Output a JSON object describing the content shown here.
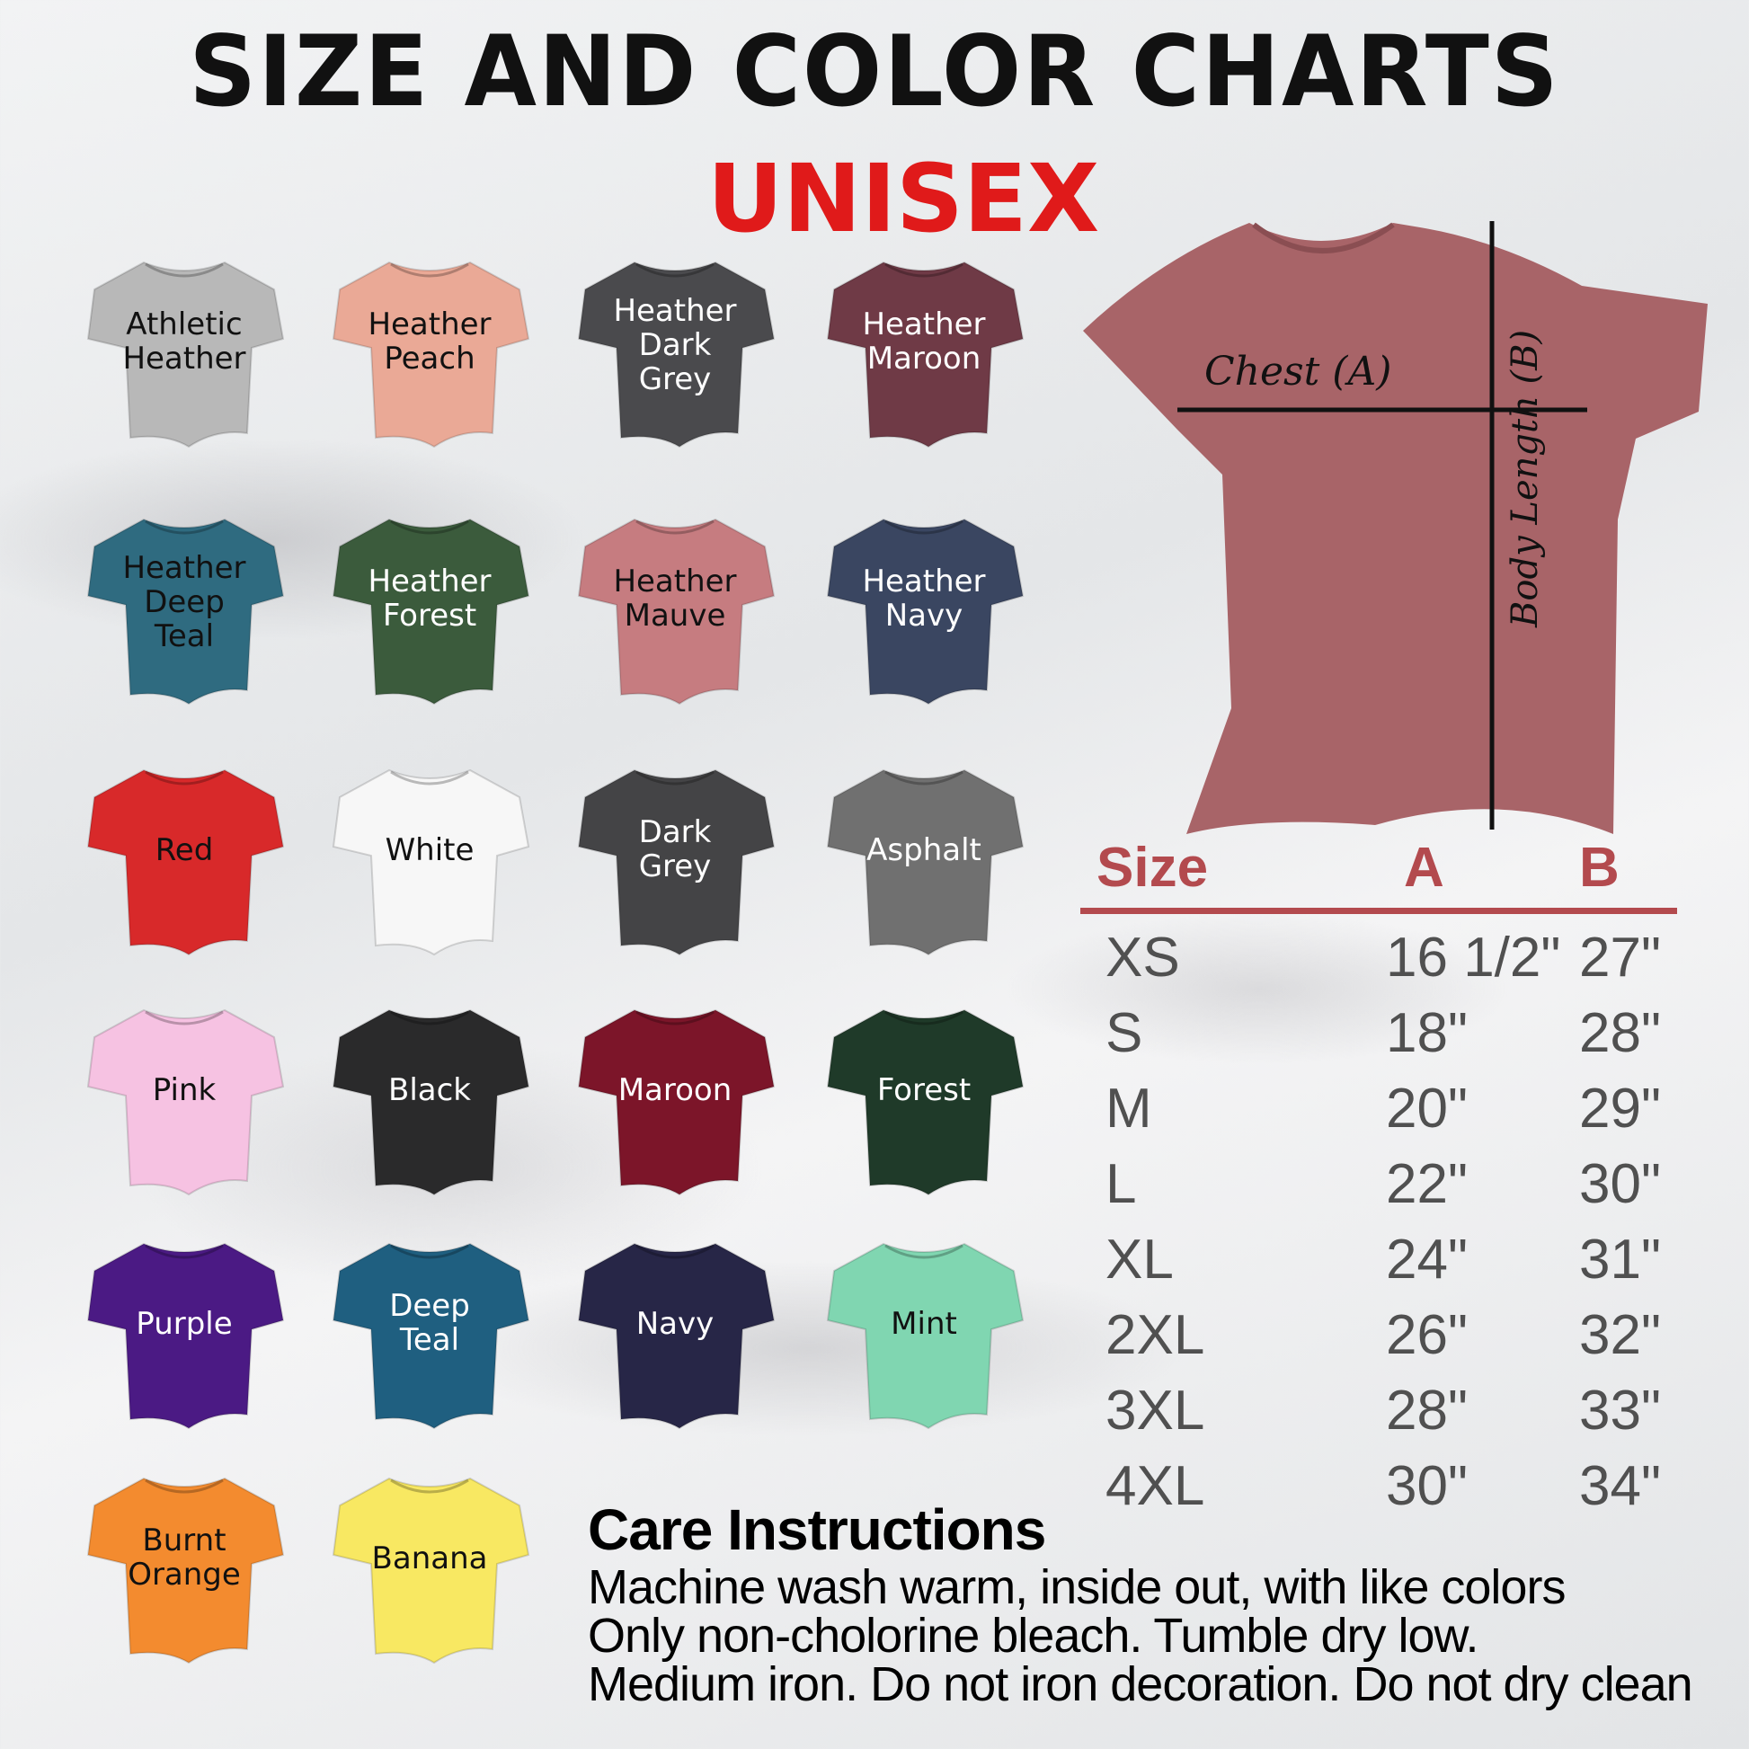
{
  "header": {
    "title": "SIZE AND COLOR CHARTS",
    "subtitle": "UNISEX"
  },
  "colors": [
    {
      "label": "Athletic\nHeather",
      "fill": "#b8b8b8",
      "text": "#111111"
    },
    {
      "label": "Heather\nPeach",
      "fill": "#eaa996",
      "text": "#111111"
    },
    {
      "label": "Heather\nDark\nGrey",
      "fill": "#4a4a4d",
      "text": "#ffffff"
    },
    {
      "label": "Heather\nMaroon",
      "fill": "#6f3a46",
      "text": "#ffffff"
    },
    {
      "label": "Heather\nDeep\nTeal",
      "fill": "#2f6b80",
      "text": "#111111"
    },
    {
      "label": "Heather\nForest",
      "fill": "#3b5b3c",
      "text": "#ffffff"
    },
    {
      "label": "Heather\nMauve",
      "fill": "#c67c80",
      "text": "#111111"
    },
    {
      "label": "Heather\nNavy",
      "fill": "#3a4661",
      "text": "#ffffff"
    },
    {
      "label": "Red",
      "fill": "#d8292a",
      "text": "#111111"
    },
    {
      "label": "White",
      "fill": "#f7f7f7",
      "text": "#111111"
    },
    {
      "label": "Dark\nGrey",
      "fill": "#444446",
      "text": "#ffffff"
    },
    {
      "label": "Asphalt",
      "fill": "#707070",
      "text": "#ffffff"
    },
    {
      "label": "Pink",
      "fill": "#f6c2e2",
      "text": "#111111"
    },
    {
      "label": "Black",
      "fill": "#2a2a2b",
      "text": "#ffffff"
    },
    {
      "label": "Maroon",
      "fill": "#7c1529",
      "text": "#ffffff"
    },
    {
      "label": "Forest",
      "fill": "#1f3a29",
      "text": "#ffffff"
    },
    {
      "label": "Purple",
      "fill": "#4b1a84",
      "text": "#ffffff"
    },
    {
      "label": "Deep\nTeal",
      "fill": "#1f5f80",
      "text": "#ffffff"
    },
    {
      "label": "Navy",
      "fill": "#272647",
      "text": "#ffffff"
    },
    {
      "label": "Mint",
      "fill": "#80d6b1",
      "text": "#111111"
    },
    {
      "label": "Burnt\nOrange",
      "fill": "#f38b2f",
      "text": "#111111"
    },
    {
      "label": "Banana",
      "fill": "#f8e862",
      "text": "#111111"
    }
  ],
  "diagram": {
    "chest_label": "Chest (A)",
    "length_label": "Body Length (B)",
    "shirt_color": "#a86468"
  },
  "size_table": {
    "headers": [
      "Size",
      "A",
      "B"
    ],
    "rows": [
      [
        "XS",
        "16 1/2\"",
        "27\""
      ],
      [
        "S",
        "18\"",
        "28\""
      ],
      [
        "M",
        "20\"",
        "29\""
      ],
      [
        "L",
        "22\"",
        "30\""
      ],
      [
        "XL",
        "24\"",
        "31\""
      ],
      [
        "2XL",
        "26\"",
        "32\""
      ],
      [
        "3XL",
        "28\"",
        "33\""
      ],
      [
        "4XL",
        "30\"",
        "34\""
      ]
    ],
    "accent": "#b34a4e"
  },
  "care": {
    "title": "Care Instructions",
    "lines": [
      "Machine wash warm, inside out, with like colors",
      "Only non-cholorine bleach. Tumble dry low.",
      "Medium iron. Do not iron decoration. Do not dry clean"
    ]
  }
}
